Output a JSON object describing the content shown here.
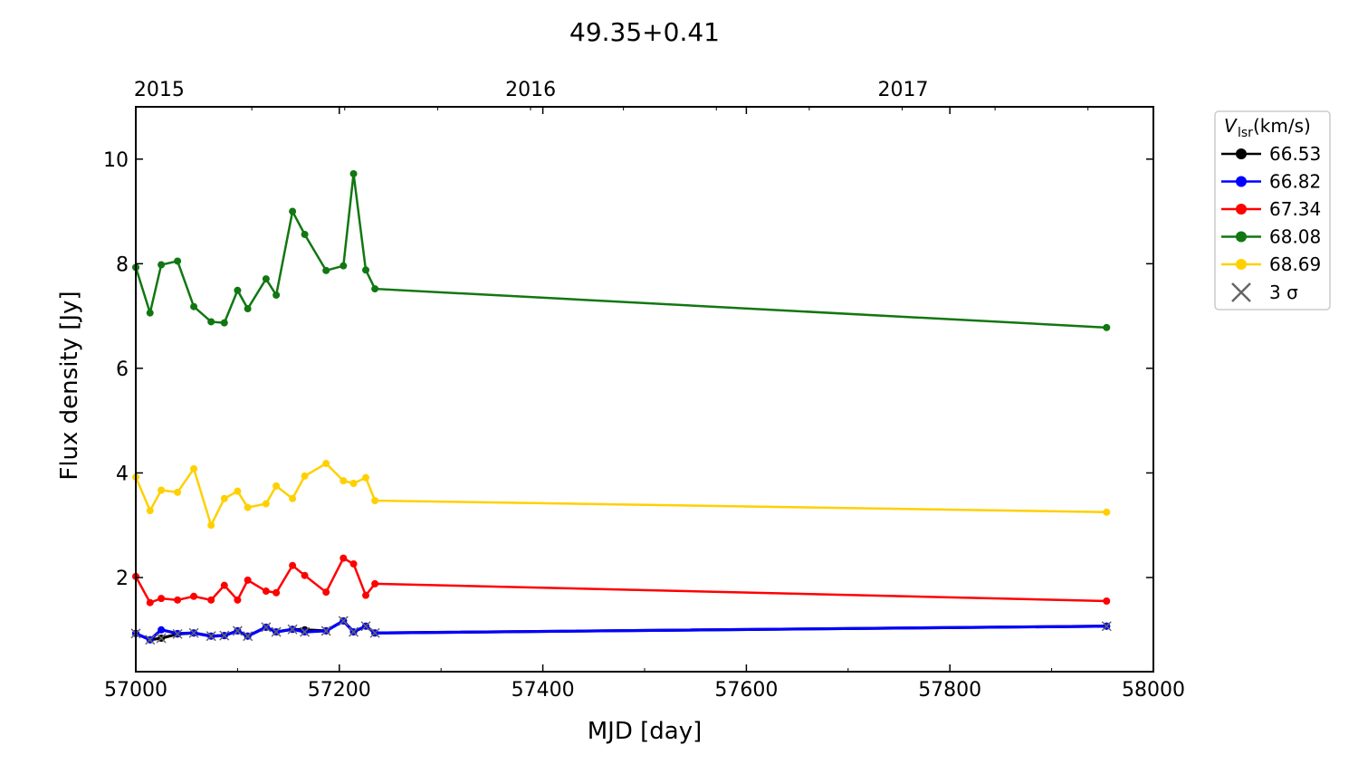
{
  "chart_data": {
    "type": "line",
    "title": "49.35+0.41",
    "xlabel": "MJD [day]",
    "ylabel": "Flux density [Jy]",
    "xlim": [
      57000,
      58000
    ],
    "ylim": [
      0.2,
      11.0
    ],
    "xticks": [
      57000,
      57200,
      57400,
      57600,
      57800,
      58000
    ],
    "yticks": [
      2,
      4,
      6,
      8,
      10
    ],
    "top_axis": {
      "ticks": [
        {
          "label": "2015",
          "mjd": 57023
        },
        {
          "label": "2016",
          "mjd": 57388
        },
        {
          "label": "2017",
          "mjd": 57754
        }
      ]
    },
    "legend": {
      "title_main": "V",
      "title_sub": "lsr",
      "title_unit": " (km/s)",
      "placement": "outside-right",
      "sigma_label": "3 σ"
    },
    "x": [
      57000,
      57014,
      57025,
      57041,
      57057,
      57074,
      57087,
      57100,
      57110,
      57128,
      57138,
      57154,
      57166,
      57187,
      57204,
      57214,
      57226,
      57235,
      57954
    ],
    "series": [
      {
        "name": "66.53",
        "color": "#000000",
        "values": [
          0.93,
          0.81,
          0.84,
          0.92,
          0.94,
          0.88,
          0.89,
          0.98,
          0.88,
          1.05,
          0.96,
          1.01,
          1.0,
          0.98,
          1.17,
          0.96,
          1.07,
          0.94,
          1.07
        ]
      },
      {
        "name": "66.82",
        "color": "#0000ff",
        "values": [
          0.93,
          0.81,
          1.0,
          0.93,
          0.94,
          0.88,
          0.89,
          0.98,
          0.88,
          1.05,
          0.96,
          1.01,
          0.96,
          0.98,
          1.17,
          0.96,
          1.07,
          0.94,
          1.07
        ]
      },
      {
        "name": "67.34",
        "color": "#ff0000",
        "values": [
          2.02,
          1.52,
          1.6,
          1.57,
          1.64,
          1.57,
          1.85,
          1.57,
          1.95,
          1.74,
          1.71,
          2.23,
          2.04,
          1.72,
          2.37,
          2.26,
          1.66,
          1.88,
          1.55
        ]
      },
      {
        "name": "68.08",
        "color": "#117711",
        "values": [
          7.93,
          7.06,
          7.98,
          8.05,
          7.18,
          6.89,
          6.87,
          7.49,
          7.14,
          7.71,
          7.4,
          9.0,
          8.56,
          7.87,
          7.96,
          9.72,
          7.88,
          7.52,
          6.78
        ]
      },
      {
        "name": "68.69",
        "color": "#ffd000",
        "values": [
          3.92,
          3.28,
          3.67,
          3.63,
          4.08,
          3.0,
          3.51,
          3.65,
          3.34,
          3.41,
          3.75,
          3.51,
          3.94,
          4.18,
          3.85,
          3.8,
          3.91,
          3.47,
          3.25
        ]
      }
    ],
    "three_sigma": [
      0.93,
      0.81,
      0.84,
      0.92,
      0.94,
      0.88,
      0.89,
      0.98,
      0.88,
      1.05,
      0.96,
      1.01,
      0.96,
      0.98,
      1.17,
      0.96,
      1.07,
      0.94,
      1.07
    ]
  }
}
